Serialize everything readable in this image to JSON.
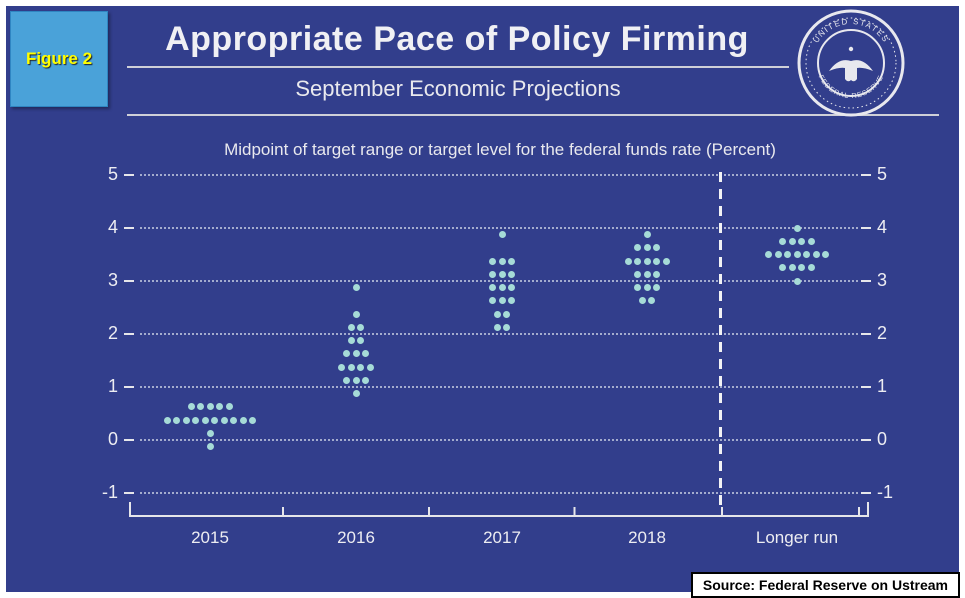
{
  "figure": {
    "label": "Figure 2"
  },
  "header": {
    "title": "Appropriate Pace of Policy Firming",
    "subtitle": "September Economic Projections"
  },
  "seal": {
    "top_text": "UNITED STATES",
    "bottom_text": "FEDERAL RESERVE"
  },
  "note": "Midpoint of target range or target level for the federal funds rate (Percent)",
  "source": {
    "text": "Source: Federal Reserve on Ustream"
  },
  "colors": {
    "background": "#323e8c",
    "dot": "#a6dbd7",
    "figure_box": "#4aa2d9",
    "figure_text": "#ffff00",
    "text": "#ededf2"
  },
  "chart_data": {
    "type": "scatter",
    "title": "Appropriate Pace of Policy Firming",
    "subtitle": "September Economic Projections",
    "ylabel": "Midpoint of target range or target level for the federal funds rate (Percent)",
    "ylim": [
      -1,
      5
    ],
    "yticks": [
      5,
      4,
      3,
      2,
      1,
      0,
      -1
    ],
    "grid": "dotted-horizontal",
    "legend_position": "none",
    "dot_color": "#a6dbd7",
    "categories": [
      "2015",
      "2016",
      "2017",
      "2018",
      "Longer run"
    ],
    "divider_before_category": "Longer run",
    "series": [
      {
        "category": "2015",
        "dots": [
          {
            "rate": 0.625,
            "count": 5
          },
          {
            "rate": 0.375,
            "count": 10
          },
          {
            "rate": 0.125,
            "count": 1
          },
          {
            "rate": -0.125,
            "count": 1
          }
        ]
      },
      {
        "category": "2016",
        "dots": [
          {
            "rate": 2.875,
            "count": 1
          },
          {
            "rate": 2.375,
            "count": 1
          },
          {
            "rate": 2.125,
            "count": 2
          },
          {
            "rate": 1.875,
            "count": 2
          },
          {
            "rate": 1.625,
            "count": 3
          },
          {
            "rate": 1.375,
            "count": 4
          },
          {
            "rate": 1.125,
            "count": 3
          },
          {
            "rate": 0.875,
            "count": 1
          }
        ]
      },
      {
        "category": "2017",
        "dots": [
          {
            "rate": 3.875,
            "count": 1
          },
          {
            "rate": 3.375,
            "count": 3
          },
          {
            "rate": 3.125,
            "count": 3
          },
          {
            "rate": 2.875,
            "count": 3
          },
          {
            "rate": 2.625,
            "count": 3
          },
          {
            "rate": 2.375,
            "count": 2
          },
          {
            "rate": 2.125,
            "count": 2
          }
        ]
      },
      {
        "category": "2018",
        "dots": [
          {
            "rate": 3.875,
            "count": 1
          },
          {
            "rate": 3.625,
            "count": 3
          },
          {
            "rate": 3.375,
            "count": 5
          },
          {
            "rate": 3.125,
            "count": 3
          },
          {
            "rate": 2.875,
            "count": 3
          },
          {
            "rate": 2.625,
            "count": 2
          }
        ]
      },
      {
        "category": "Longer run",
        "dots": [
          {
            "rate": 4.0,
            "count": 1
          },
          {
            "rate": 3.75,
            "count": 4
          },
          {
            "rate": 3.5,
            "count": 7
          },
          {
            "rate": 3.25,
            "count": 4
          },
          {
            "rate": 3.0,
            "count": 1
          }
        ]
      }
    ]
  }
}
